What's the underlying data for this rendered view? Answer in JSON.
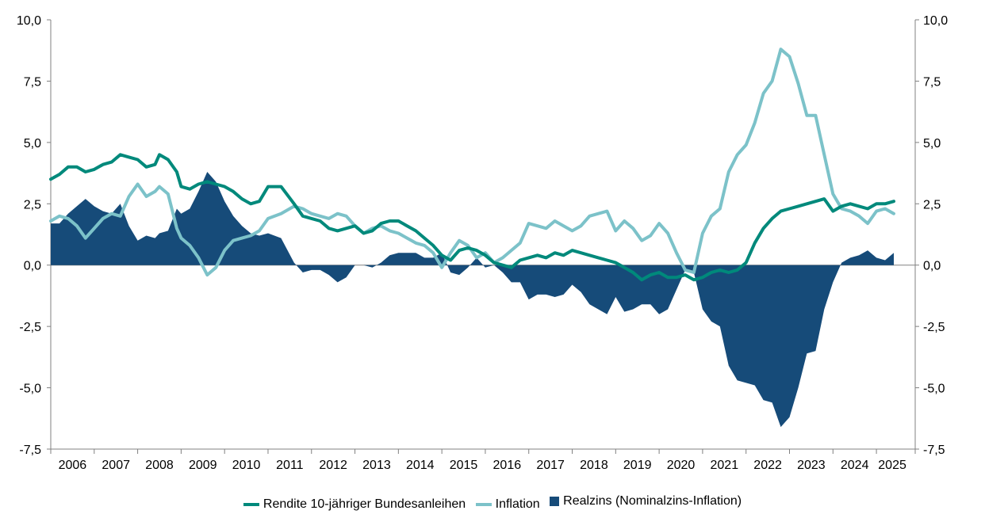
{
  "chart_data": {
    "type": "area+line",
    "title": "",
    "xlabel": "",
    "ylabel": "",
    "ylim": [
      -7.5,
      10.0
    ],
    "yticks": [
      "10,0",
      "7,5",
      "5,0",
      "2,5",
      "0,0",
      "-2,5",
      "-5,0",
      "-7,5"
    ],
    "ytick_values": [
      10,
      7.5,
      5,
      2.5,
      0,
      -2.5,
      -5,
      -7.5
    ],
    "categories": [
      "2006",
      "2007",
      "2008",
      "2009",
      "2010",
      "2011",
      "2012",
      "2013",
      "2014",
      "2015",
      "2016",
      "2017",
      "2018",
      "2019",
      "2020",
      "2021",
      "2022",
      "2023",
      "2024",
      "2025"
    ],
    "x_range": [
      2006.0,
      2025.4
    ],
    "legend_position": "bottom",
    "series": [
      {
        "name": "Rendite 10-jähriger Bundesanleihen",
        "kind": "line",
        "color": "#00897b",
        "points": [
          [
            2006.0,
            3.5
          ],
          [
            2006.2,
            3.7
          ],
          [
            2006.4,
            4.0
          ],
          [
            2006.6,
            4.0
          ],
          [
            2006.8,
            3.8
          ],
          [
            2007.0,
            3.9
          ],
          [
            2007.2,
            4.1
          ],
          [
            2007.4,
            4.2
          ],
          [
            2007.6,
            4.5
          ],
          [
            2007.8,
            4.4
          ],
          [
            2008.0,
            4.3
          ],
          [
            2008.2,
            4.0
          ],
          [
            2008.4,
            4.1
          ],
          [
            2008.5,
            4.5
          ],
          [
            2008.7,
            4.3
          ],
          [
            2008.9,
            3.8
          ],
          [
            2009.0,
            3.2
          ],
          [
            2009.2,
            3.1
          ],
          [
            2009.4,
            3.3
          ],
          [
            2009.6,
            3.4
          ],
          [
            2009.8,
            3.3
          ],
          [
            2010.0,
            3.2
          ],
          [
            2010.2,
            3.0
          ],
          [
            2010.4,
            2.7
          ],
          [
            2010.6,
            2.5
          ],
          [
            2010.8,
            2.6
          ],
          [
            2011.0,
            3.2
          ],
          [
            2011.3,
            3.2
          ],
          [
            2011.6,
            2.5
          ],
          [
            2011.8,
            2.0
          ],
          [
            2012.0,
            1.9
          ],
          [
            2012.2,
            1.8
          ],
          [
            2012.4,
            1.5
          ],
          [
            2012.6,
            1.4
          ],
          [
            2012.8,
            1.5
          ],
          [
            2013.0,
            1.6
          ],
          [
            2013.2,
            1.3
          ],
          [
            2013.4,
            1.4
          ],
          [
            2013.6,
            1.7
          ],
          [
            2013.8,
            1.8
          ],
          [
            2014.0,
            1.8
          ],
          [
            2014.2,
            1.6
          ],
          [
            2014.4,
            1.4
          ],
          [
            2014.6,
            1.1
          ],
          [
            2014.8,
            0.8
          ],
          [
            2015.0,
            0.4
          ],
          [
            2015.2,
            0.2
          ],
          [
            2015.4,
            0.6
          ],
          [
            2015.6,
            0.7
          ],
          [
            2015.8,
            0.6
          ],
          [
            2016.0,
            0.4
          ],
          [
            2016.2,
            0.1
          ],
          [
            2016.4,
            0.0
          ],
          [
            2016.6,
            -0.1
          ],
          [
            2016.8,
            0.2
          ],
          [
            2017.0,
            0.3
          ],
          [
            2017.2,
            0.4
          ],
          [
            2017.4,
            0.3
          ],
          [
            2017.6,
            0.5
          ],
          [
            2017.8,
            0.4
          ],
          [
            2018.0,
            0.6
          ],
          [
            2018.2,
            0.5
          ],
          [
            2018.4,
            0.4
          ],
          [
            2018.6,
            0.3
          ],
          [
            2018.8,
            0.2
          ],
          [
            2019.0,
            0.1
          ],
          [
            2019.2,
            -0.1
          ],
          [
            2019.4,
            -0.3
          ],
          [
            2019.6,
            -0.6
          ],
          [
            2019.8,
            -0.4
          ],
          [
            2020.0,
            -0.3
          ],
          [
            2020.2,
            -0.5
          ],
          [
            2020.4,
            -0.5
          ],
          [
            2020.6,
            -0.4
          ],
          [
            2020.8,
            -0.6
          ],
          [
            2021.0,
            -0.5
          ],
          [
            2021.2,
            -0.3
          ],
          [
            2021.4,
            -0.2
          ],
          [
            2021.6,
            -0.3
          ],
          [
            2021.8,
            -0.2
          ],
          [
            2022.0,
            0.1
          ],
          [
            2022.2,
            0.9
          ],
          [
            2022.4,
            1.5
          ],
          [
            2022.6,
            1.9
          ],
          [
            2022.8,
            2.2
          ],
          [
            2023.0,
            2.3
          ],
          [
            2023.2,
            2.4
          ],
          [
            2023.4,
            2.5
          ],
          [
            2023.6,
            2.6
          ],
          [
            2023.8,
            2.7
          ],
          [
            2024.0,
            2.2
          ],
          [
            2024.2,
            2.4
          ],
          [
            2024.4,
            2.5
          ],
          [
            2024.6,
            2.4
          ],
          [
            2024.8,
            2.3
          ],
          [
            2025.0,
            2.5
          ],
          [
            2025.2,
            2.5
          ],
          [
            2025.4,
            2.6
          ]
        ]
      },
      {
        "name": "Inflation",
        "kind": "line",
        "color": "#7cc2c9",
        "points": [
          [
            2006.0,
            1.8
          ],
          [
            2006.2,
            2.0
          ],
          [
            2006.4,
            1.9
          ],
          [
            2006.6,
            1.6
          ],
          [
            2006.8,
            1.1
          ],
          [
            2007.0,
            1.5
          ],
          [
            2007.2,
            1.9
          ],
          [
            2007.4,
            2.1
          ],
          [
            2007.6,
            2.0
          ],
          [
            2007.8,
            2.8
          ],
          [
            2008.0,
            3.3
          ],
          [
            2008.2,
            2.8
          ],
          [
            2008.4,
            3.0
          ],
          [
            2008.5,
            3.2
          ],
          [
            2008.7,
            2.9
          ],
          [
            2008.9,
            1.5
          ],
          [
            2009.0,
            1.1
          ],
          [
            2009.2,
            0.8
          ],
          [
            2009.4,
            0.3
          ],
          [
            2009.6,
            -0.4
          ],
          [
            2009.8,
            -0.1
          ],
          [
            2010.0,
            0.6
          ],
          [
            2010.2,
            1.0
          ],
          [
            2010.4,
            1.1
          ],
          [
            2010.6,
            1.2
          ],
          [
            2010.8,
            1.4
          ],
          [
            2011.0,
            1.9
          ],
          [
            2011.3,
            2.1
          ],
          [
            2011.6,
            2.4
          ],
          [
            2011.8,
            2.3
          ],
          [
            2012.0,
            2.1
          ],
          [
            2012.2,
            2.0
          ],
          [
            2012.4,
            1.9
          ],
          [
            2012.6,
            2.1
          ],
          [
            2012.8,
            2.0
          ],
          [
            2013.0,
            1.6
          ],
          [
            2013.2,
            1.3
          ],
          [
            2013.4,
            1.5
          ],
          [
            2013.6,
            1.6
          ],
          [
            2013.8,
            1.4
          ],
          [
            2014.0,
            1.3
          ],
          [
            2014.2,
            1.1
          ],
          [
            2014.4,
            0.9
          ],
          [
            2014.6,
            0.8
          ],
          [
            2014.8,
            0.5
          ],
          [
            2015.0,
            -0.1
          ],
          [
            2015.2,
            0.5
          ],
          [
            2015.4,
            1.0
          ],
          [
            2015.6,
            0.8
          ],
          [
            2015.8,
            0.3
          ],
          [
            2016.0,
            0.5
          ],
          [
            2016.2,
            0.1
          ],
          [
            2016.4,
            0.3
          ],
          [
            2016.6,
            0.6
          ],
          [
            2016.8,
            0.9
          ],
          [
            2017.0,
            1.7
          ],
          [
            2017.2,
            1.6
          ],
          [
            2017.4,
            1.5
          ],
          [
            2017.6,
            1.8
          ],
          [
            2017.8,
            1.6
          ],
          [
            2018.0,
            1.4
          ],
          [
            2018.2,
            1.6
          ],
          [
            2018.4,
            2.0
          ],
          [
            2018.6,
            2.1
          ],
          [
            2018.8,
            2.2
          ],
          [
            2019.0,
            1.4
          ],
          [
            2019.2,
            1.8
          ],
          [
            2019.4,
            1.5
          ],
          [
            2019.6,
            1.0
          ],
          [
            2019.8,
            1.2
          ],
          [
            2020.0,
            1.7
          ],
          [
            2020.2,
            1.3
          ],
          [
            2020.4,
            0.5
          ],
          [
            2020.6,
            -0.2
          ],
          [
            2020.8,
            -0.3
          ],
          [
            2021.0,
            1.3
          ],
          [
            2021.2,
            2.0
          ],
          [
            2021.4,
            2.3
          ],
          [
            2021.6,
            3.8
          ],
          [
            2021.8,
            4.5
          ],
          [
            2022.0,
            4.9
          ],
          [
            2022.2,
            5.8
          ],
          [
            2022.4,
            7.0
          ],
          [
            2022.6,
            7.5
          ],
          [
            2022.8,
            8.8
          ],
          [
            2023.0,
            8.5
          ],
          [
            2023.2,
            7.4
          ],
          [
            2023.4,
            6.1
          ],
          [
            2023.6,
            6.1
          ],
          [
            2023.8,
            4.5
          ],
          [
            2024.0,
            2.9
          ],
          [
            2024.2,
            2.3
          ],
          [
            2024.4,
            2.2
          ],
          [
            2024.6,
            2.0
          ],
          [
            2024.8,
            1.7
          ],
          [
            2025.0,
            2.2
          ],
          [
            2025.2,
            2.3
          ],
          [
            2025.4,
            2.1
          ]
        ]
      },
      {
        "name": "Realzins (Nominalzins-Inflation)",
        "kind": "area",
        "color": "#164b79",
        "points": [
          [
            2006.0,
            1.7
          ],
          [
            2006.2,
            1.7
          ],
          [
            2006.4,
            2.1
          ],
          [
            2006.6,
            2.4
          ],
          [
            2006.8,
            2.7
          ],
          [
            2007.0,
            2.4
          ],
          [
            2007.2,
            2.2
          ],
          [
            2007.4,
            2.1
          ],
          [
            2007.6,
            2.5
          ],
          [
            2007.8,
            1.6
          ],
          [
            2008.0,
            1.0
          ],
          [
            2008.2,
            1.2
          ],
          [
            2008.4,
            1.1
          ],
          [
            2008.5,
            1.3
          ],
          [
            2008.7,
            1.4
          ],
          [
            2008.9,
            2.3
          ],
          [
            2009.0,
            2.1
          ],
          [
            2009.2,
            2.3
          ],
          [
            2009.4,
            3.0
          ],
          [
            2009.6,
            3.8
          ],
          [
            2009.8,
            3.4
          ],
          [
            2010.0,
            2.6
          ],
          [
            2010.2,
            2.0
          ],
          [
            2010.4,
            1.6
          ],
          [
            2010.6,
            1.3
          ],
          [
            2010.8,
            1.2
          ],
          [
            2011.0,
            1.3
          ],
          [
            2011.3,
            1.1
          ],
          [
            2011.6,
            0.1
          ],
          [
            2011.8,
            -0.3
          ],
          [
            2012.0,
            -0.2
          ],
          [
            2012.2,
            -0.2
          ],
          [
            2012.4,
            -0.4
          ],
          [
            2012.6,
            -0.7
          ],
          [
            2012.8,
            -0.5
          ],
          [
            2013.0,
            0.0
          ],
          [
            2013.2,
            0.0
          ],
          [
            2013.4,
            -0.1
          ],
          [
            2013.6,
            0.1
          ],
          [
            2013.8,
            0.4
          ],
          [
            2014.0,
            0.5
          ],
          [
            2014.2,
            0.5
          ],
          [
            2014.4,
            0.5
          ],
          [
            2014.6,
            0.3
          ],
          [
            2014.8,
            0.3
          ],
          [
            2015.0,
            0.5
          ],
          [
            2015.2,
            -0.3
          ],
          [
            2015.4,
            -0.4
          ],
          [
            2015.6,
            -0.1
          ],
          [
            2015.8,
            0.3
          ],
          [
            2016.0,
            -0.1
          ],
          [
            2016.2,
            0.0
          ],
          [
            2016.4,
            -0.3
          ],
          [
            2016.6,
            -0.7
          ],
          [
            2016.8,
            -0.7
          ],
          [
            2017.0,
            -1.4
          ],
          [
            2017.2,
            -1.2
          ],
          [
            2017.4,
            -1.2
          ],
          [
            2017.6,
            -1.3
          ],
          [
            2017.8,
            -1.2
          ],
          [
            2018.0,
            -0.8
          ],
          [
            2018.2,
            -1.1
          ],
          [
            2018.4,
            -1.6
          ],
          [
            2018.6,
            -1.8
          ],
          [
            2018.8,
            -2.0
          ],
          [
            2019.0,
            -1.3
          ],
          [
            2019.2,
            -1.9
          ],
          [
            2019.4,
            -1.8
          ],
          [
            2019.6,
            -1.6
          ],
          [
            2019.8,
            -1.6
          ],
          [
            2020.0,
            -2.0
          ],
          [
            2020.2,
            -1.8
          ],
          [
            2020.4,
            -1.0
          ],
          [
            2020.6,
            -0.2
          ],
          [
            2020.8,
            -0.3
          ],
          [
            2021.0,
            -1.8
          ],
          [
            2021.2,
            -2.3
          ],
          [
            2021.4,
            -2.5
          ],
          [
            2021.6,
            -4.1
          ],
          [
            2021.8,
            -4.7
          ],
          [
            2022.0,
            -4.8
          ],
          [
            2022.2,
            -4.9
          ],
          [
            2022.4,
            -5.5
          ],
          [
            2022.6,
            -5.6
          ],
          [
            2022.8,
            -6.6
          ],
          [
            2023.0,
            -6.2
          ],
          [
            2023.2,
            -5.0
          ],
          [
            2023.4,
            -3.6
          ],
          [
            2023.6,
            -3.5
          ],
          [
            2023.8,
            -1.8
          ],
          [
            2024.0,
            -0.7
          ],
          [
            2024.2,
            0.1
          ],
          [
            2024.4,
            0.3
          ],
          [
            2024.6,
            0.4
          ],
          [
            2024.8,
            0.6
          ],
          [
            2025.0,
            0.3
          ],
          [
            2025.2,
            0.2
          ],
          [
            2025.4,
            0.5
          ]
        ]
      }
    ]
  },
  "legend": {
    "items": [
      {
        "label": "Rendite 10-jähriger Bundesanleihen",
        "color": "#00897b",
        "style": "line"
      },
      {
        "label": "Inflation",
        "color": "#7cc2c9",
        "style": "line"
      },
      {
        "label": "Realzins (Nominalzins-Inflation)",
        "color": "#164b79",
        "style": "box"
      }
    ]
  }
}
